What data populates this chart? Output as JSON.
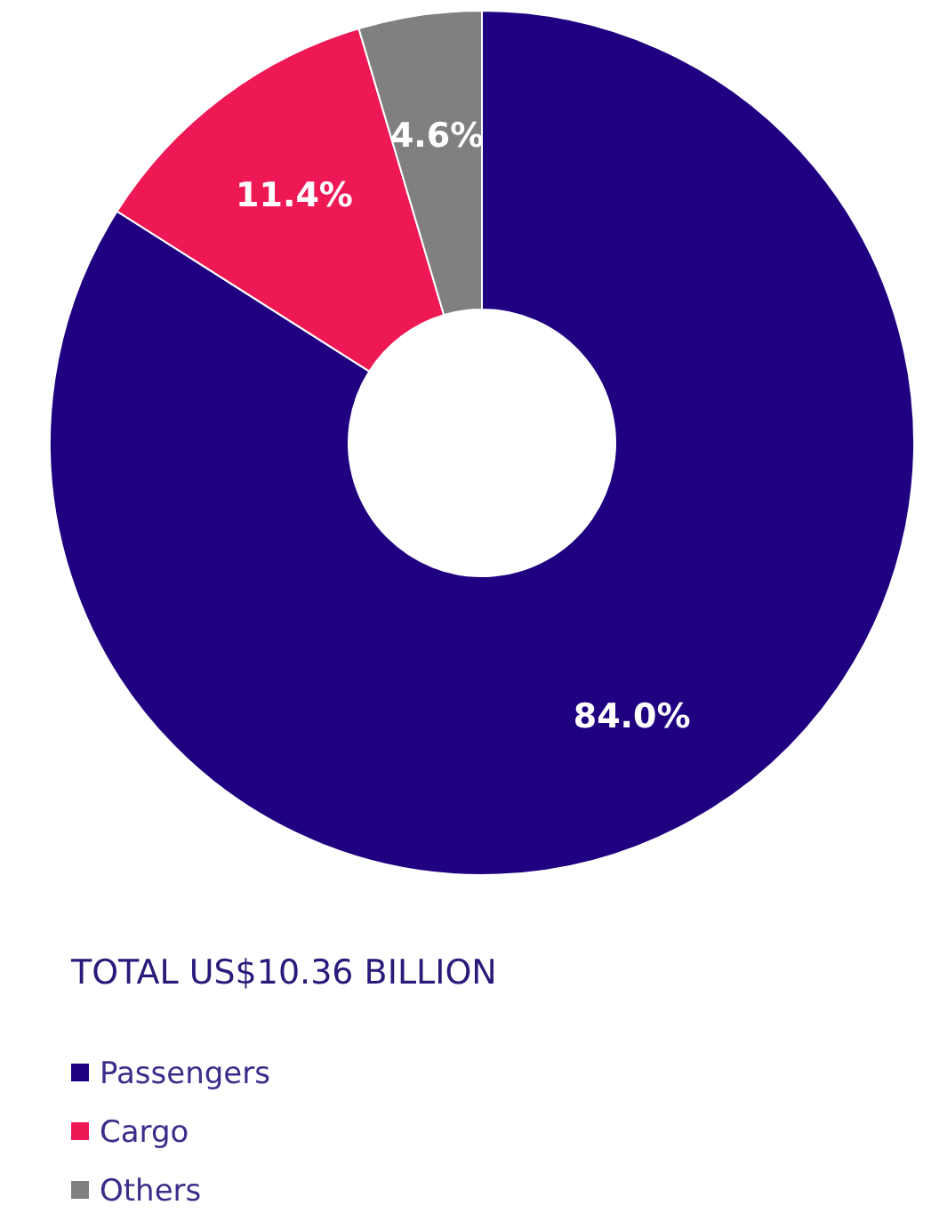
{
  "chart_data": {
    "type": "donut",
    "title": "TOTAL US$10.36 BILLION",
    "categories": [
      "Passengers",
      "Cargo",
      "Others"
    ],
    "values": [
      84.0,
      11.4,
      4.6
    ],
    "colors": [
      "#1e0080",
      "#ee1854",
      "#808080"
    ],
    "value_labels": [
      "84.0%",
      "11.4%",
      "4.6%"
    ],
    "legend": "bottom left"
  }
}
